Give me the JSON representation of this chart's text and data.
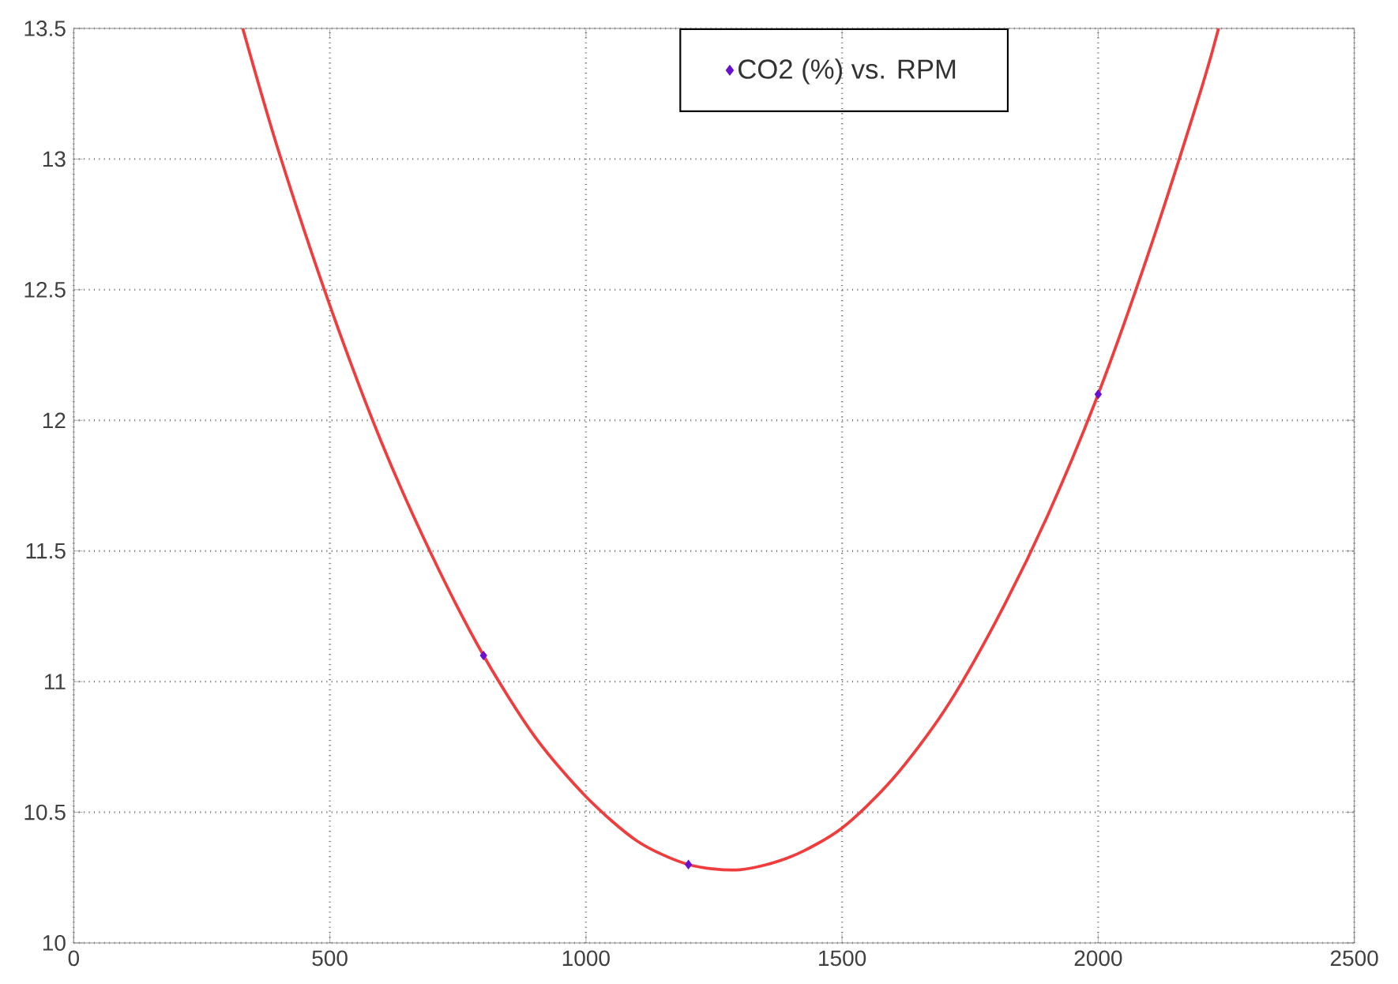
{
  "chart_data": {
    "type": "scatter",
    "xlim": [
      0,
      2500
    ],
    "ylim": [
      10,
      13.5
    ],
    "xticks": [
      0,
      500,
      1000,
      1500,
      2000,
      2500
    ],
    "yticks": [
      10,
      10.5,
      11,
      11.5,
      12,
      12.5,
      13,
      13.5
    ],
    "grid": true,
    "legend": "top",
    "series": [
      {
        "name": "CO2 (%) vs. RPM",
        "marker": "diamond",
        "color": "#6a10d0",
        "x": [
          800,
          1200,
          2000
        ],
        "values": [
          11.1,
          10.3,
          12.1
        ]
      },
      {
        "type": "line",
        "line_style": "solid",
        "marker": "none",
        "color": "#f03c3c",
        "x": [
          330,
          400,
          500,
          600,
          700,
          800,
          900,
          1000,
          1100,
          1200,
          1300,
          1400,
          1500,
          1600,
          1700,
          1800,
          1900,
          2000,
          2100,
          2200,
          2235
        ],
        "values": [
          13.5,
          13.03,
          12.44,
          11.92,
          11.48,
          11.1,
          10.79,
          10.56,
          10.39,
          10.3,
          10.28,
          10.33,
          10.44,
          10.63,
          10.89,
          11.23,
          11.63,
          12.1,
          12.65,
          13.26,
          13.5
        ]
      }
    ]
  }
}
